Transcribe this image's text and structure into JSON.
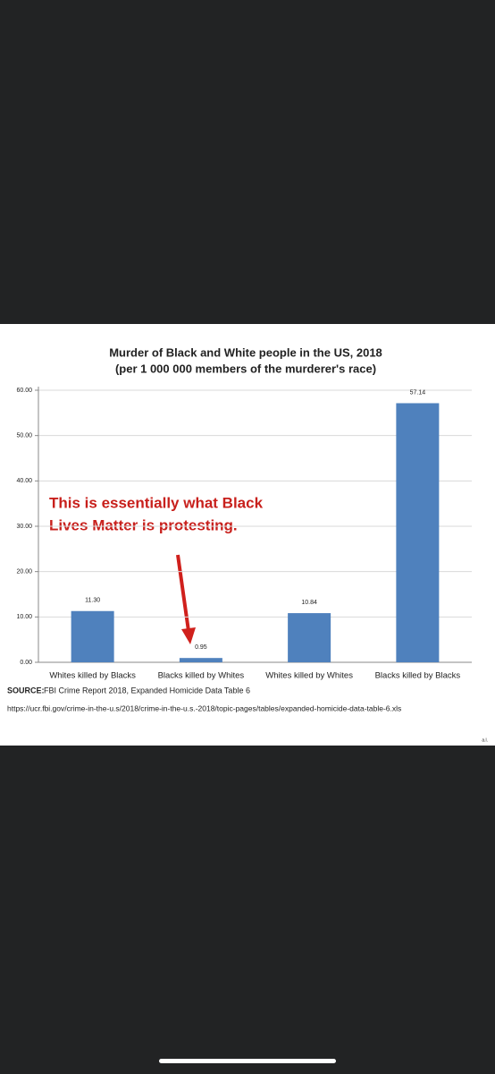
{
  "chart_data": {
    "type": "bar",
    "title": "Murder of Black and White people in the US, 2018",
    "subtitle": "(per 1 000 000 members of the murderer's race)",
    "categories": [
      "Whites killed by Blacks",
      "Blacks killed by Whites",
      "Whites killed by Whites",
      "Blacks killed by Blacks"
    ],
    "values": [
      11.3,
      0.95,
      10.84,
      57.14
    ],
    "value_labels": [
      "11.30",
      "0.95",
      "10.84",
      "57.14"
    ],
    "color": "#4f81bd",
    "ylim": [
      0,
      60
    ],
    "yticks": [
      {
        "value": 0,
        "label": "0.00"
      },
      {
        "value": 10,
        "label": "10.00"
      },
      {
        "value": 20,
        "label": "20.00"
      },
      {
        "value": 30,
        "label": "30.00"
      },
      {
        "value": 40,
        "label": "40.00"
      },
      {
        "value": 50,
        "label": "50.00"
      },
      {
        "value": 60,
        "label": "60.00"
      }
    ],
    "grid": true,
    "annotation": [
      "This is essentially what Black",
      "Lives Matter is protesting."
    ],
    "source_label": "SOURCE:",
    "source": "FBI Crime Report 2018, Expanded Homicide Data Table 6",
    "url": "https://ucr.fbi.gov/crime-in-the-u.s/2018/crime-in-the-u.s.-2018/topic-pages/tables/expanded-homicide-data-table-6.xls",
    "signature": "a.l."
  }
}
